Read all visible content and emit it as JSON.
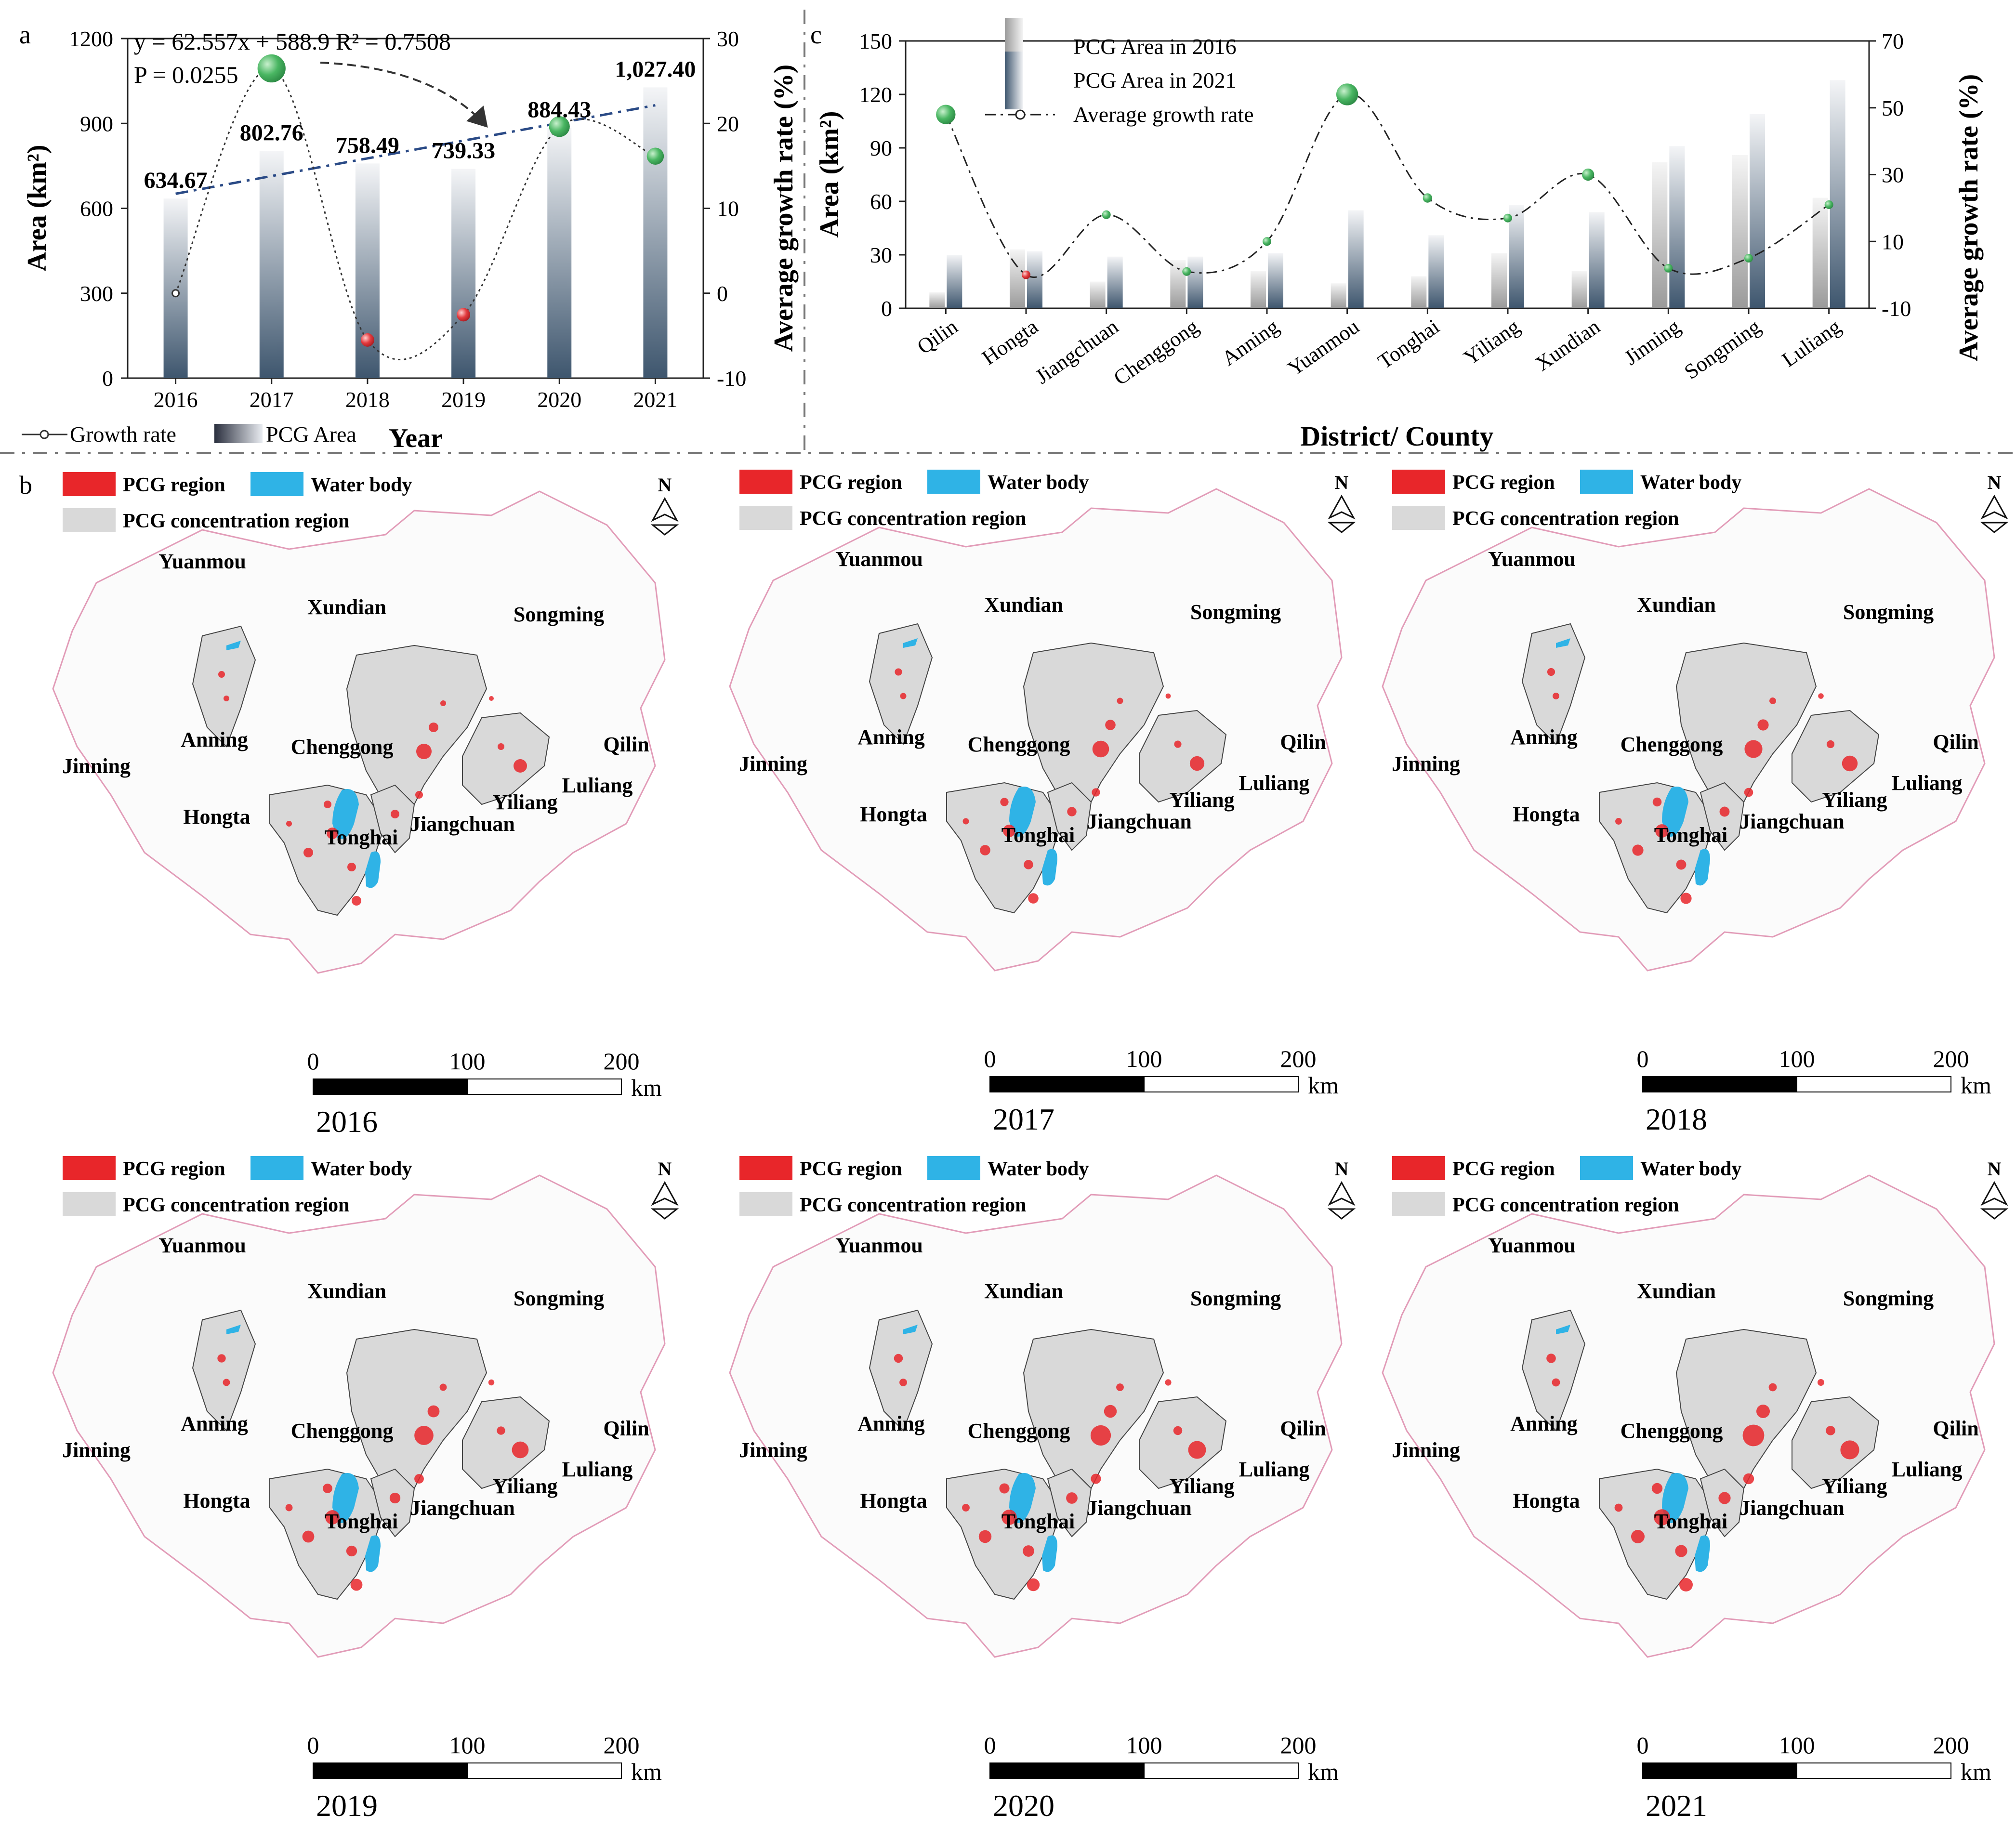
{
  "panel_labels": {
    "a": "a",
    "b": "b",
    "c": "c"
  },
  "colors": {
    "bar_dark": "#3e566e",
    "bar_light": "#f3f4f6",
    "gray_bar_dark": "#9a9a9a",
    "trend_line": "#2a4a86",
    "growth_positive": "#3fae5a",
    "growth_negative": "#e0353b",
    "pcg_region": "#e8262a",
    "water_body": "#2fb3e6",
    "concentration": "#d9d9d9",
    "boundary": "#e29cb8"
  },
  "chart_data": [
    {
      "id": "a",
      "type": "bar",
      "categories": [
        "2016",
        "2017",
        "2018",
        "2019",
        "2020",
        "2021"
      ],
      "values": [
        634.67,
        802.76,
        758.49,
        739.33,
        884.43,
        1027.4
      ],
      "value_labels": [
        "634.67",
        "802.76",
        "758.49",
        "739.33",
        "884.43",
        "1,027.40"
      ],
      "growth_rate": [
        0,
        26.48,
        -5.51,
        -2.53,
        19.63,
        16.14
      ],
      "xlabel": "Year",
      "ylabel": "Area (km²)",
      "ylabel_right": "Average growth rate (%)",
      "ylim": [
        0,
        1200
      ],
      "yticks": [
        "0",
        "300",
        "600",
        "900",
        "1200"
      ],
      "ylim_right": [
        -10,
        30
      ],
      "yticks_right": [
        "-10",
        "0",
        "10",
        "20",
        "30"
      ],
      "trend": {
        "slope": 62.557,
        "intercept": 588.9
      },
      "equation": "y = 62.557x + 588.9 R² = 0.7508",
      "p_value": "P = 0.0255",
      "legend": {
        "growth": "Growth rate",
        "area": "PCG Area"
      }
    },
    {
      "id": "c",
      "type": "bar",
      "categories": [
        "Qilin",
        "Hongta",
        "Jiangchuan",
        "Chenggong",
        "Anning",
        "Yuanmou",
        "Tonghai",
        "Yiliang",
        "Xundian",
        "Jinning",
        "Songming",
        "Luliang"
      ],
      "series": [
        {
          "name": "PCG Area in 2016",
          "values": [
            9,
            33,
            15,
            27,
            21,
            14,
            18,
            31,
            21,
            82,
            86,
            62
          ]
        },
        {
          "name": "PCG Area in 2021",
          "values": [
            30,
            32,
            29,
            29,
            31,
            55,
            41,
            58,
            54,
            91,
            109,
            128
          ]
        },
        {
          "name": "Average growth rate",
          "values": [
            48,
            0,
            18,
            1,
            10,
            54,
            23,
            17,
            30,
            2,
            5,
            21
          ]
        }
      ],
      "xlabel": "District/ County",
      "ylabel": "Area (km²)",
      "ylabel_right": "Average growth rate (%)",
      "ylim": [
        0,
        150
      ],
      "yticks": [
        "0",
        "30",
        "60",
        "90",
        "120",
        "150"
      ],
      "ylim_right": [
        -10,
        70
      ],
      "yticks_right": [
        "-10",
        "10",
        "30",
        "50",
        "70"
      ]
    }
  ],
  "maps": {
    "legend": {
      "pcg": "PCG region",
      "water": "Water body",
      "concentration": "PCG concentration region"
    },
    "north": "N",
    "scale_ticks": [
      "0",
      "100",
      "200"
    ],
    "scale_unit": "km",
    "district_labels": [
      "Yuanmou",
      "Xundian",
      "Songming",
      "Anning",
      "Chenggong",
      "Qilin",
      "Jinning",
      "Luliang",
      "Yiliang",
      "Hongta",
      "Jiangchuan",
      "Tonghai"
    ],
    "years": [
      "2016",
      "2017",
      "2018",
      "2019",
      "2020",
      "2021"
    ]
  }
}
